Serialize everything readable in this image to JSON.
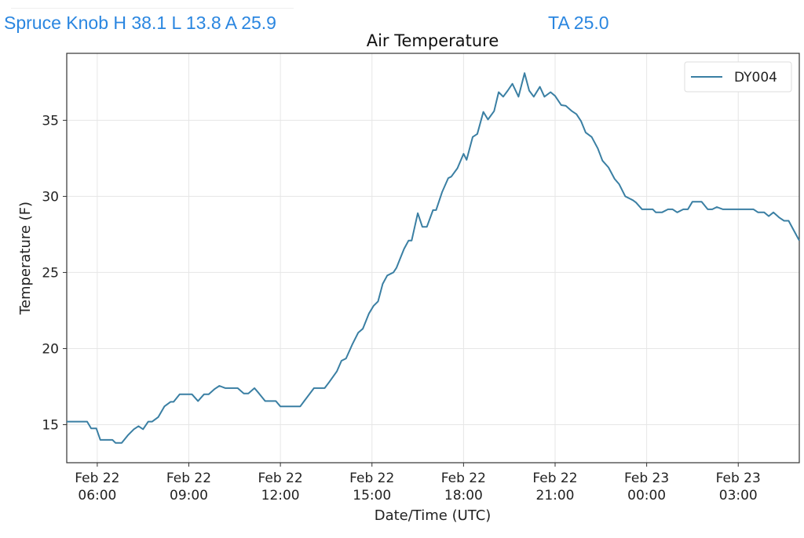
{
  "header": {
    "station_summary": "Spruce Knob H 38.1 L 13.8 A 25.9",
    "current": "TA 25.0"
  },
  "colors": {
    "header": "#2a86e0",
    "series": "#3a7fa3",
    "grid": "#e6e6e6"
  },
  "chart_data": {
    "type": "line",
    "title": "Air Temperature",
    "xlabel": "Date/Time (UTC)",
    "ylabel": "Temperature (F)",
    "x_units": "hours since Feb 22 00:00 UTC",
    "xlim": [
      5,
      29
    ],
    "ylim": [
      12.5,
      39.4
    ],
    "grid": true,
    "legend_position": "top-right",
    "xticks": [
      {
        "value": 6,
        "line1": "Feb 22",
        "line2": "06:00"
      },
      {
        "value": 9,
        "line1": "Feb 22",
        "line2": "09:00"
      },
      {
        "value": 12,
        "line1": "Feb 22",
        "line2": "12:00"
      },
      {
        "value": 15,
        "line1": "Feb 22",
        "line2": "15:00"
      },
      {
        "value": 18,
        "line1": "Feb 22",
        "line2": "18:00"
      },
      {
        "value": 21,
        "line1": "Feb 22",
        "line2": "21:00"
      },
      {
        "value": 24,
        "line1": "Feb 23",
        "line2": "00:00"
      },
      {
        "value": 27,
        "line1": "Feb 23",
        "line2": "03:00"
      }
    ],
    "yticks": [
      15,
      20,
      25,
      30,
      35
    ],
    "series": [
      {
        "name": "DY004",
        "points": [
          [
            5.0,
            15.2
          ],
          [
            5.67,
            15.2
          ],
          [
            5.8,
            14.75
          ],
          [
            5.97,
            14.75
          ],
          [
            6.1,
            14.0
          ],
          [
            6.5,
            14.0
          ],
          [
            6.6,
            13.8
          ],
          [
            6.8,
            13.8
          ],
          [
            7.0,
            14.3
          ],
          [
            7.2,
            14.7
          ],
          [
            7.35,
            14.9
          ],
          [
            7.5,
            14.7
          ],
          [
            7.67,
            15.2
          ],
          [
            7.8,
            15.2
          ],
          [
            8.0,
            15.5
          ],
          [
            8.2,
            16.2
          ],
          [
            8.4,
            16.5
          ],
          [
            8.5,
            16.5
          ],
          [
            8.7,
            17.0
          ],
          [
            9.1,
            17.0
          ],
          [
            9.3,
            16.55
          ],
          [
            9.5,
            17.0
          ],
          [
            9.65,
            17.0
          ],
          [
            9.85,
            17.35
          ],
          [
            10.0,
            17.55
          ],
          [
            10.2,
            17.4
          ],
          [
            10.6,
            17.4
          ],
          [
            10.8,
            17.05
          ],
          [
            10.95,
            17.05
          ],
          [
            11.15,
            17.4
          ],
          [
            11.3,
            17.05
          ],
          [
            11.5,
            16.55
          ],
          [
            11.85,
            16.55
          ],
          [
            12.0,
            16.2
          ],
          [
            12.65,
            16.2
          ],
          [
            12.8,
            16.6
          ],
          [
            13.1,
            17.4
          ],
          [
            13.45,
            17.4
          ],
          [
            13.6,
            17.8
          ],
          [
            13.85,
            18.5
          ],
          [
            14.0,
            19.2
          ],
          [
            14.15,
            19.35
          ],
          [
            14.35,
            20.25
          ],
          [
            14.55,
            21.05
          ],
          [
            14.7,
            21.3
          ],
          [
            14.9,
            22.3
          ],
          [
            15.05,
            22.8
          ],
          [
            15.2,
            23.1
          ],
          [
            15.35,
            24.25
          ],
          [
            15.5,
            24.8
          ],
          [
            15.7,
            25.0
          ],
          [
            15.8,
            25.3
          ],
          [
            16.05,
            26.55
          ],
          [
            16.2,
            27.1
          ],
          [
            16.3,
            27.1
          ],
          [
            16.5,
            28.9
          ],
          [
            16.65,
            28.0
          ],
          [
            16.8,
            28.0
          ],
          [
            17.0,
            29.1
          ],
          [
            17.1,
            29.1
          ],
          [
            17.3,
            30.3
          ],
          [
            17.5,
            31.2
          ],
          [
            17.6,
            31.3
          ],
          [
            17.8,
            31.85
          ],
          [
            18.0,
            32.8
          ],
          [
            18.1,
            32.4
          ],
          [
            18.3,
            33.9
          ],
          [
            18.45,
            34.1
          ],
          [
            18.65,
            35.55
          ],
          [
            18.8,
            35.05
          ],
          [
            19.0,
            35.6
          ],
          [
            19.15,
            36.85
          ],
          [
            19.3,
            36.55
          ],
          [
            19.45,
            36.95
          ],
          [
            19.6,
            37.4
          ],
          [
            19.8,
            36.55
          ],
          [
            20.0,
            38.1
          ],
          [
            20.15,
            36.95
          ],
          [
            20.3,
            36.55
          ],
          [
            20.5,
            37.2
          ],
          [
            20.65,
            36.55
          ],
          [
            20.85,
            36.85
          ],
          [
            21.0,
            36.6
          ],
          [
            21.2,
            36.0
          ],
          [
            21.35,
            35.95
          ],
          [
            21.55,
            35.6
          ],
          [
            21.7,
            35.4
          ],
          [
            21.85,
            34.95
          ],
          [
            22.0,
            34.2
          ],
          [
            22.2,
            33.9
          ],
          [
            22.4,
            33.15
          ],
          [
            22.55,
            32.35
          ],
          [
            22.75,
            31.9
          ],
          [
            22.95,
            31.15
          ],
          [
            23.1,
            30.8
          ],
          [
            23.3,
            30.0
          ],
          [
            23.55,
            29.75
          ],
          [
            23.65,
            29.6
          ],
          [
            23.85,
            29.15
          ],
          [
            24.2,
            29.15
          ],
          [
            24.3,
            28.95
          ],
          [
            24.5,
            28.95
          ],
          [
            24.7,
            29.15
          ],
          [
            24.85,
            29.15
          ],
          [
            25.0,
            28.95
          ],
          [
            25.2,
            29.15
          ],
          [
            25.35,
            29.15
          ],
          [
            25.5,
            29.65
          ],
          [
            25.8,
            29.65
          ],
          [
            26.0,
            29.15
          ],
          [
            26.15,
            29.15
          ],
          [
            26.3,
            29.3
          ],
          [
            26.5,
            29.15
          ],
          [
            27.5,
            29.15
          ],
          [
            27.65,
            28.95
          ],
          [
            27.85,
            28.95
          ],
          [
            28.0,
            28.7
          ],
          [
            28.15,
            28.95
          ],
          [
            28.35,
            28.6
          ],
          [
            28.5,
            28.4
          ],
          [
            28.65,
            28.4
          ],
          [
            28.85,
            27.65
          ],
          [
            29.0,
            27.1
          ]
        ]
      }
    ]
  }
}
